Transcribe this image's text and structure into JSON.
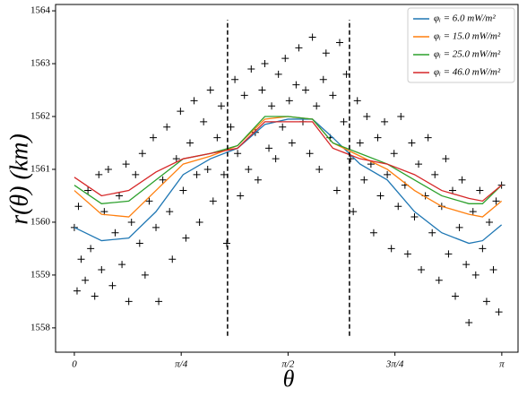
{
  "chart_data": {
    "type": "line",
    "xlabel": "θ",
    "ylabel": "r(θ)  (km)",
    "xlim": [
      -0.138,
      3.261
    ],
    "ylim": [
      1557.54,
      1564.12
    ],
    "xticks": [
      {
        "value": 0,
        "label": "0"
      },
      {
        "value": 0.7854,
        "label": "π/4"
      },
      {
        "value": 1.5708,
        "label": "π/2"
      },
      {
        "value": 2.3562,
        "label": "3π/4"
      },
      {
        "value": 3.1416,
        "label": "π"
      }
    ],
    "yticks": [
      1558,
      1559,
      1560,
      1561,
      1562,
      1563,
      1564
    ],
    "legend": "upper right",
    "x": [
      0,
      0.2,
      0.4,
      0.6,
      0.8,
      1.0,
      1.2,
      1.4,
      1.57,
      1.75,
      1.9,
      2.1,
      2.3,
      2.5,
      2.7,
      2.9,
      3.0,
      3.14
    ],
    "series": [
      {
        "name": "φᵢ = 6.0 mW/m²",
        "color": "#1f77b4",
        "values": [
          1559.9,
          1559.65,
          1559.7,
          1560.2,
          1560.9,
          1561.2,
          1561.4,
          1561.85,
          1561.95,
          1561.95,
          1561.6,
          1561.1,
          1560.8,
          1560.2,
          1559.8,
          1559.6,
          1559.65,
          1559.95
        ]
      },
      {
        "name": "φᵢ = 15.0 mW/m²",
        "color": "#ff7f0e",
        "values": [
          1560.6,
          1560.15,
          1560.1,
          1560.6,
          1561.1,
          1561.25,
          1561.45,
          1561.95,
          1562.0,
          1561.95,
          1561.5,
          1561.25,
          1561.0,
          1560.6,
          1560.3,
          1560.15,
          1560.1,
          1560.4
        ]
      },
      {
        "name": "φᵢ = 25.0 mW/m²",
        "color": "#2ca02c",
        "values": [
          1560.7,
          1560.35,
          1560.4,
          1560.8,
          1561.2,
          1561.3,
          1561.45,
          1562.0,
          1562.0,
          1561.95,
          1561.5,
          1561.3,
          1561.1,
          1560.8,
          1560.5,
          1560.35,
          1560.35,
          1560.7
        ]
      },
      {
        "name": "φᵢ = 46.0 mW/m²",
        "color": "#d62728",
        "values": [
          1560.85,
          1560.5,
          1560.6,
          1560.95,
          1561.2,
          1561.3,
          1561.4,
          1561.9,
          1561.9,
          1561.9,
          1561.4,
          1561.2,
          1561.1,
          1560.9,
          1560.6,
          1560.45,
          1560.4,
          1560.7
        ]
      }
    ],
    "scatter": {
      "color": "#000000",
      "x": [
        0.0,
        0.02,
        0.03,
        0.05,
        0.08,
        0.1,
        0.12,
        0.15,
        0.18,
        0.2,
        0.22,
        0.25,
        0.28,
        0.3,
        0.33,
        0.35,
        0.38,
        0.4,
        0.42,
        0.45,
        0.48,
        0.5,
        0.52,
        0.55,
        0.58,
        0.6,
        0.62,
        0.65,
        0.68,
        0.7,
        0.72,
        0.75,
        0.78,
        0.8,
        0.82,
        0.85,
        0.88,
        0.9,
        0.92,
        0.95,
        0.98,
        1.0,
        1.02,
        1.05,
        1.08,
        1.1,
        1.12,
        1.15,
        1.18,
        1.2,
        1.22,
        1.25,
        1.28,
        1.3,
        1.33,
        1.35,
        1.38,
        1.4,
        1.43,
        1.45,
        1.48,
        1.5,
        1.53,
        1.55,
        1.58,
        1.6,
        1.63,
        1.65,
        1.68,
        1.7,
        1.73,
        1.75,
        1.78,
        1.8,
        1.83,
        1.85,
        1.88,
        1.9,
        1.93,
        1.95,
        1.98,
        2.0,
        2.03,
        2.05,
        2.08,
        2.1,
        2.13,
        2.15,
        2.18,
        2.2,
        2.23,
        2.25,
        2.28,
        2.3,
        2.33,
        2.35,
        2.38,
        2.4,
        2.43,
        2.45,
        2.48,
        2.5,
        2.53,
        2.55,
        2.58,
        2.6,
        2.63,
        2.65,
        2.68,
        2.7,
        2.73,
        2.75,
        2.78,
        2.8,
        2.83,
        2.85,
        2.88,
        2.9,
        2.93,
        2.95,
        2.98,
        3.0,
        3.03,
        3.05,
        3.08,
        3.1,
        3.12,
        3.14
      ],
      "y": [
        1559.9,
        1558.7,
        1560.3,
        1559.3,
        1558.9,
        1560.6,
        1559.5,
        1558.6,
        1560.9,
        1559.1,
        1560.2,
        1561.0,
        1558.8,
        1559.8,
        1560.5,
        1559.2,
        1561.1,
        1558.5,
        1560.0,
        1560.9,
        1559.6,
        1561.3,
        1559.0,
        1560.4,
        1561.6,
        1559.9,
        1558.5,
        1560.8,
        1561.8,
        1560.2,
        1559.3,
        1561.2,
        1562.1,
        1560.6,
        1559.7,
        1561.5,
        1562.3,
        1560.9,
        1560.0,
        1561.9,
        1561.0,
        1562.5,
        1560.4,
        1561.6,
        1562.2,
        1560.9,
        1559.6,
        1561.8,
        1562.7,
        1561.3,
        1560.5,
        1562.4,
        1561.0,
        1562.9,
        1561.7,
        1560.8,
        1562.5,
        1563.0,
        1561.4,
        1562.2,
        1561.2,
        1562.8,
        1561.8,
        1563.1,
        1562.3,
        1561.5,
        1562.6,
        1563.3,
        1561.9,
        1562.5,
        1561.3,
        1563.5,
        1562.2,
        1561.0,
        1562.7,
        1563.2,
        1561.6,
        1562.4,
        1560.6,
        1563.4,
        1561.9,
        1562.8,
        1561.2,
        1560.2,
        1562.3,
        1561.5,
        1560.8,
        1562.0,
        1561.1,
        1559.8,
        1561.6,
        1560.5,
        1561.9,
        1560.9,
        1559.5,
        1561.3,
        1560.3,
        1562.0,
        1560.7,
        1559.4,
        1561.5,
        1560.1,
        1561.1,
        1559.1,
        1560.5,
        1561.6,
        1559.8,
        1560.9,
        1558.9,
        1560.3,
        1561.2,
        1559.4,
        1560.6,
        1558.6,
        1559.9,
        1560.8,
        1559.2,
        1558.1,
        1560.2,
        1559.0,
        1560.6,
        1559.5,
        1558.5,
        1560.0,
        1559.1,
        1560.4,
        1558.3,
        1560.7
      ]
    },
    "vlines": [
      {
        "x": 1.126,
        "ymin": 1557.85,
        "ymax": 1563.83
      },
      {
        "x": 2.022,
        "ymin": 1557.85,
        "ymax": 1563.83
      }
    ]
  }
}
